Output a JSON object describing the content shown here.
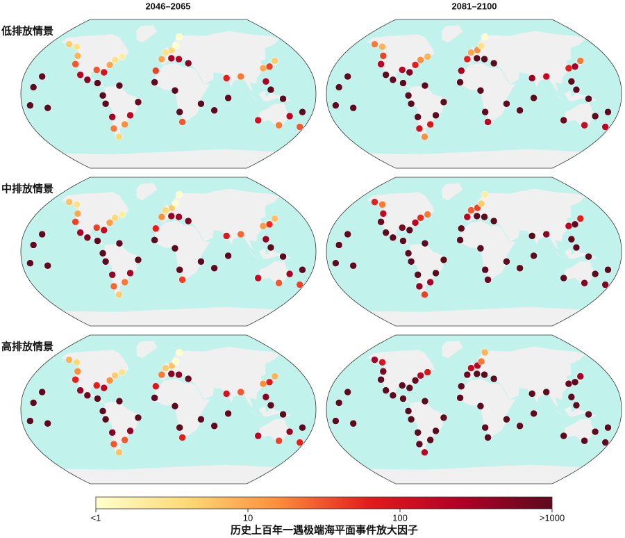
{
  "chart_data": {
    "type": "map",
    "columns": [
      "2046–2065",
      "2081–2100"
    ],
    "sites": {
      "lon": [
        -150,
        -135,
        -124,
        -121,
        -110,
        -100,
        -87,
        -80,
        -77,
        -71,
        -73,
        -70,
        -57,
        -48,
        -37,
        -60,
        -81,
        -76,
        -71,
        -63,
        -91,
        -157,
        -170,
        -149,
        -165,
        -4,
        5,
        11,
        18,
        -9,
        4,
        14,
        26,
        -16,
        -17,
        8,
        14,
        18,
        40,
        57,
        73,
        72,
        90,
        121,
        130,
        141,
        120,
        125,
        140,
        115,
        153,
        145,
        167,
        174
      ],
      "lat": [
        60,
        57,
        46,
        36,
        23,
        17,
        13,
        -2,
        -12,
        -28,
        -42,
        -52,
        -37,
        -26,
        -10,
        10,
        26,
        35,
        41,
        45,
        29,
        21,
        -14,
        -17,
        8,
        50,
        53,
        58,
        69,
        42,
        43,
        42,
        37,
        28,
        14,
        4,
        -22,
        -34,
        -12,
        -20,
        -5,
        19,
        21,
        31,
        33,
        40,
        15,
        5,
        -6,
        -32,
        -27,
        -38,
        -22,
        -40
      ]
    },
    "series": [
      {
        "name": "低排放情景",
        "values": [
          [
            5,
            3,
            8,
            30,
            200,
            500,
            1000,
            1000,
            1000,
            300,
            20,
            4,
            15,
            200,
            800,
            1000,
            100,
            10,
            3,
            2,
            30,
            1000,
            1000,
            1000,
            1000,
            3,
            4,
            1,
            0.8,
            10,
            300,
            200,
            500,
            40,
            1000,
            1000,
            1000,
            30,
            1000,
            1000,
            1000,
            60,
            20,
            10,
            40,
            5,
            300,
            1000,
            1000,
            100,
            200,
            20,
            1000,
            30
          ],
          [
            20,
            8,
            40,
            200,
            1000,
            1000,
            1000,
            1000,
            1000,
            1000,
            100,
            15,
            80,
            1000,
            1000,
            1000,
            600,
            60,
            15,
            8,
            200,
            1000,
            1000,
            1000,
            1000,
            10,
            15,
            3,
            1,
            60,
            1000,
            1000,
            1000,
            300,
            1000,
            1000,
            1000,
            200,
            1000,
            1000,
            1000,
            400,
            150,
            60,
            300,
            20,
            1000,
            1000,
            1000,
            800,
            1000,
            150,
            1000,
            200
          ]
        ]
      },
      {
        "name": "中排放情景",
        "values": [
          [
            6,
            3,
            10,
            40,
            300,
            600,
            1000,
            1000,
            1000,
            400,
            25,
            5,
            20,
            300,
            1000,
            1000,
            150,
            12,
            4,
            2,
            40,
            1000,
            1000,
            1000,
            1000,
            4,
            5,
            1,
            0.8,
            15,
            400,
            300,
            600,
            60,
            1000,
            1000,
            1000,
            40,
            1000,
            1000,
            1000,
            80,
            25,
            12,
            50,
            6,
            400,
            1000,
            1000,
            150,
            300,
            30,
            1000,
            40
          ],
          [
            60,
            20,
            150,
            800,
            1000,
            1000,
            1000,
            1000,
            1000,
            1000,
            400,
            40,
            300,
            1000,
            1000,
            1000,
            1000,
            200,
            50,
            20,
            600,
            1000,
            1000,
            1000,
            1000,
            30,
            40,
            5,
            2,
            200,
            1000,
            1000,
            1000,
            1000,
            1000,
            1000,
            1000,
            800,
            1000,
            1000,
            1000,
            1000,
            500,
            200,
            1000,
            60,
            1000,
            1000,
            1000,
            1000,
            1000,
            500,
            1000,
            600
          ]
        ]
      },
      {
        "name": "高排放情景",
        "values": [
          [
            8,
            4,
            15,
            60,
            400,
            800,
            1000,
            1000,
            1000,
            500,
            30,
            6,
            30,
            400,
            1000,
            1000,
            200,
            15,
            5,
            3,
            60,
            1000,
            1000,
            1000,
            1000,
            5,
            6,
            1,
            0.9,
            20,
            500,
            400,
            800,
            80,
            1000,
            1000,
            1000,
            60,
            1000,
            1000,
            1000,
            100,
            30,
            15,
            70,
            8,
            500,
            1000,
            1000,
            200,
            400,
            40,
            1000,
            60
          ],
          [
            300,
            80,
            600,
            1000,
            1000,
            1000,
            1000,
            1000,
            1000,
            1000,
            1000,
            200,
            1000,
            1000,
            1000,
            1000,
            1000,
            800,
            200,
            80,
            1000,
            1000,
            1000,
            1000,
            1000,
            150,
            200,
            20,
            8,
            800,
            1000,
            1000,
            1000,
            1000,
            1000,
            1000,
            1000,
            1000,
            1000,
            1000,
            1000,
            1000,
            1000,
            800,
            1000,
            300,
            1000,
            1000,
            1000,
            1000,
            1000,
            1000,
            1000,
            1000
          ]
        ]
      }
    ],
    "colorbar": {
      "label": "历史上百年一遇极端海平面事件放大因子",
      "log": true,
      "lim": [
        1,
        1000
      ],
      "ticks": [
        {
          "value": 1,
          "label": "<1"
        },
        10,
        100,
        {
          "value": 1000,
          "label": ">1000"
        }
      ],
      "colors": [
        "#ffffcc",
        "#fed976",
        "#fd8d3c",
        "#e31a1c",
        "#b10026",
        "#5c0a1e"
      ]
    },
    "ocean_color": "#c2f2ec",
    "land_color": "#f0f0f0"
  }
}
